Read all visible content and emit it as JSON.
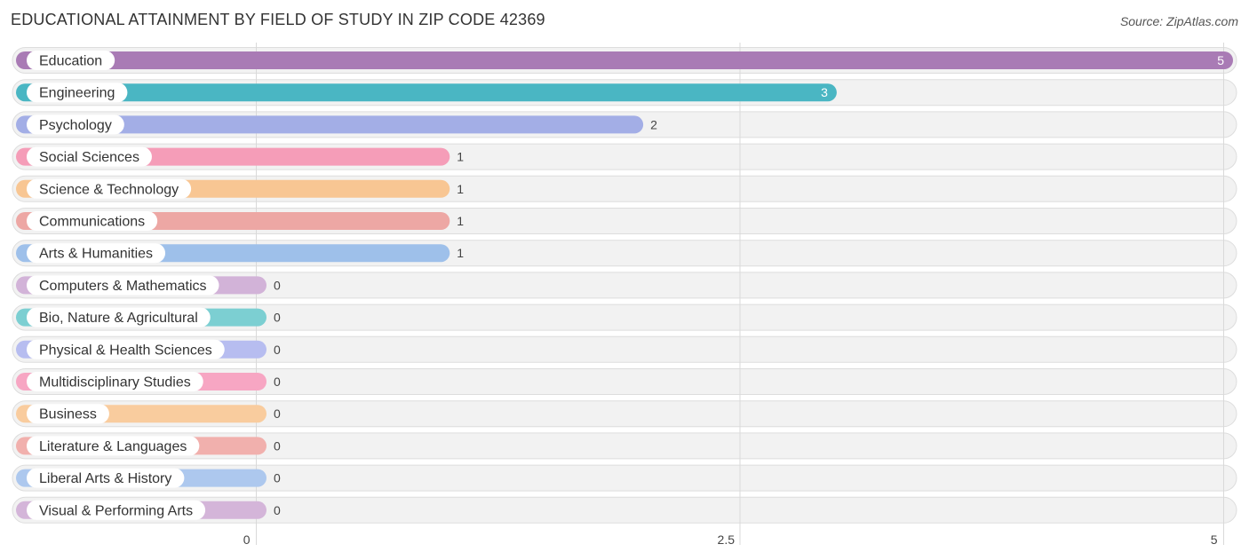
{
  "header": {
    "title": "EDUCATIONAL ATTAINMENT BY FIELD OF STUDY IN ZIP CODE 42369",
    "source": "Source: ZipAtlas.com"
  },
  "chart_data": {
    "type": "bar",
    "orientation": "horizontal",
    "title": "EDUCATIONAL ATTAINMENT BY FIELD OF STUDY IN ZIP CODE 42369",
    "xlabel": "",
    "ylabel": "",
    "xlim": [
      0,
      5
    ],
    "ticks": [
      "0",
      "2.5",
      "5"
    ],
    "tick_values": [
      0,
      2.5,
      5
    ],
    "grid": true,
    "categories": [
      "Education",
      "Engineering",
      "Psychology",
      "Social Sciences",
      "Science & Technology",
      "Communications",
      "Arts & Humanities",
      "Computers & Mathematics",
      "Bio, Nature & Agricultural",
      "Physical & Health Sciences",
      "Multidisciplinary Studies",
      "Business",
      "Literature & Languages",
      "Liberal Arts & History",
      "Visual & Performing Arts"
    ],
    "values": [
      5,
      3,
      2,
      1,
      1,
      1,
      1,
      0,
      0,
      0,
      0,
      0,
      0,
      0,
      0
    ],
    "value_labels": [
      "5",
      "3",
      "2",
      "1",
      "1",
      "1",
      "1",
      "0",
      "0",
      "0",
      "0",
      "0",
      "0",
      "0",
      "0"
    ],
    "colors": [
      "#a97bb5",
      "#4ab6c3",
      "#a3aee6",
      "#f59db8",
      "#f8c693",
      "#eda7a4",
      "#9ec0ea",
      "#d2b3d8",
      "#7ccfd2",
      "#b7bdf0",
      "#f7a6c3",
      "#f9cc9e",
      "#f1b0ad",
      "#adc8ee",
      "#d4b5d9"
    ]
  }
}
